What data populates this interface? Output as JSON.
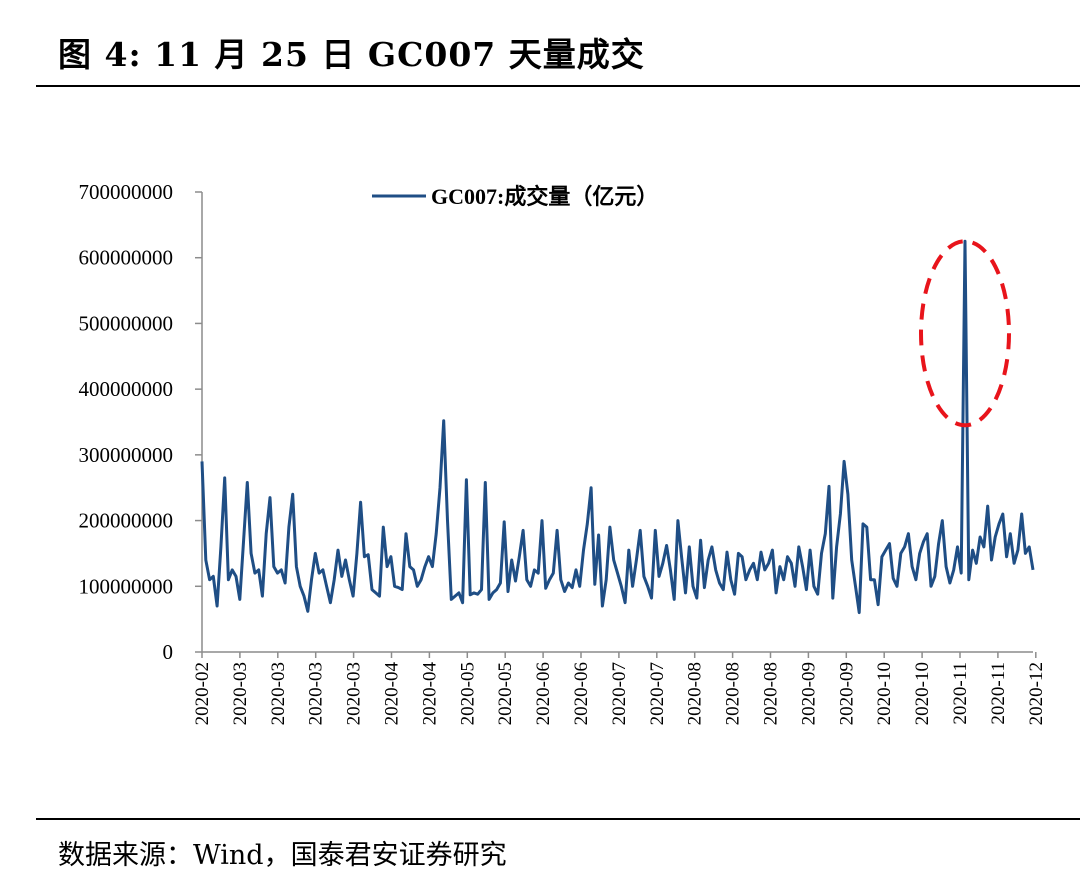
{
  "figure": {
    "title": "图 4:  11 月 25 日 GC007 天量成交",
    "source": "数据来源：Wind，国泰君安证券研究"
  },
  "chart_data": {
    "type": "line",
    "title": "图 4:  11 月 25 日 GC007 天量成交",
    "xlabel": "",
    "ylabel": "",
    "ylim": [
      0,
      700000000
    ],
    "yticks": [
      0,
      100000000,
      200000000,
      300000000,
      400000000,
      500000000,
      600000000,
      700000000
    ],
    "ytick_labels": [
      "0",
      "100000000",
      "200000000",
      "300000000",
      "400000000",
      "500000000",
      "600000000",
      "700000000"
    ],
    "xtick_labels": [
      "2020-02",
      "2020-03",
      "2020-03",
      "2020-03",
      "2020-03",
      "2020-04",
      "2020-04",
      "2020-05",
      "2020-05",
      "2020-06",
      "2020-06",
      "2020-07",
      "2020-07",
      "2020-08",
      "2020-08",
      "2020-08",
      "2020-09",
      "2020-09",
      "2020-10",
      "2020-10",
      "2020-11",
      "2020-11",
      "2020-12"
    ],
    "legend": {
      "position": "top-center",
      "entries": [
        "GC007:成交量（亿元）"
      ]
    },
    "grid": false,
    "annotation": "red dashed ellipse highlighting the 2020-11-25 spike",
    "series": [
      {
        "name": "GC007:成交量（亿元）",
        "color": "#1f4e85",
        "values": [
          290000000,
          140000000,
          110000000,
          115000000,
          70000000,
          160000000,
          265000000,
          110000000,
          125000000,
          115000000,
          80000000,
          170000000,
          258000000,
          150000000,
          120000000,
          125000000,
          85000000,
          180000000,
          235000000,
          130000000,
          120000000,
          125000000,
          105000000,
          190000000,
          240000000,
          130000000,
          100000000,
          85000000,
          62000000,
          110000000,
          150000000,
          120000000,
          125000000,
          100000000,
          75000000,
          110000000,
          155000000,
          115000000,
          140000000,
          110000000,
          85000000,
          150000000,
          228000000,
          145000000,
          148000000,
          95000000,
          90000000,
          85000000,
          190000000,
          130000000,
          145000000,
          100000000,
          98000000,
          95000000,
          180000000,
          130000000,
          125000000,
          100000000,
          110000000,
          130000000,
          145000000,
          130000000,
          180000000,
          250000000,
          352000000,
          200000000,
          80000000,
          85000000,
          90000000,
          75000000,
          262000000,
          87000000,
          90000000,
          88000000,
          95000000,
          258000000,
          80000000,
          90000000,
          95000000,
          105000000,
          198000000,
          92000000,
          140000000,
          108000000,
          145000000,
          185000000,
          110000000,
          100000000,
          125000000,
          120000000,
          200000000,
          97000000,
          110000000,
          120000000,
          185000000,
          110000000,
          92000000,
          105000000,
          98000000,
          125000000,
          100000000,
          155000000,
          195000000,
          250000000,
          103000000,
          178000000,
          70000000,
          110000000,
          190000000,
          140000000,
          120000000,
          100000000,
          75000000,
          155000000,
          100000000,
          140000000,
          185000000,
          115000000,
          100000000,
          82000000,
          185000000,
          115000000,
          135000000,
          162000000,
          125000000,
          80000000,
          200000000,
          143000000,
          90000000,
          160000000,
          100000000,
          82000000,
          170000000,
          98000000,
          140000000,
          160000000,
          125000000,
          105000000,
          95000000,
          152000000,
          110000000,
          88000000,
          150000000,
          145000000,
          110000000,
          125000000,
          135000000,
          110000000,
          152000000,
          125000000,
          135000000,
          155000000,
          90000000,
          130000000,
          110000000,
          145000000,
          135000000,
          100000000,
          160000000,
          130000000,
          95000000,
          155000000,
          100000000,
          88000000,
          150000000,
          180000000,
          252000000,
          82000000,
          160000000,
          210000000,
          290000000,
          240000000,
          140000000,
          100000000,
          60000000,
          195000000,
          190000000,
          110000000,
          110000000,
          72000000,
          145000000,
          155000000,
          165000000,
          112000000,
          100000000,
          150000000,
          160000000,
          180000000,
          130000000,
          110000000,
          150000000,
          168000000,
          180000000,
          100000000,
          115000000,
          165000000,
          200000000,
          130000000,
          105000000,
          125000000,
          160000000,
          120000000,
          625000000,
          110000000,
          155000000,
          135000000,
          175000000,
          160000000,
          222000000,
          140000000,
          175000000,
          195000000,
          210000000,
          145000000,
          180000000,
          135000000,
          155000000,
          210000000,
          150000000,
          160000000,
          125000000
        ]
      }
    ]
  }
}
